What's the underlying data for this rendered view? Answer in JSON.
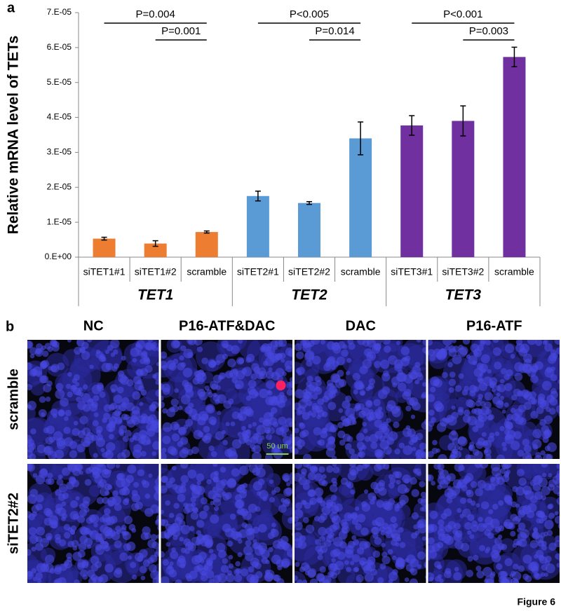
{
  "panel_a_label": "a",
  "chart_data": {
    "type": "bar",
    "y_label": "Relative mRNA level of TETs",
    "ylim": [
      0,
      7e-05
    ],
    "yticks": [
      {
        "value": 0,
        "label": "0.E+00"
      },
      {
        "value": 1e-05,
        "label": "1.E-05"
      },
      {
        "value": 2e-05,
        "label": "2.E-05"
      },
      {
        "value": 3e-05,
        "label": "3.E-05"
      },
      {
        "value": 4e-05,
        "label": "4.E-05"
      },
      {
        "value": 5e-05,
        "label": "5.E-05"
      },
      {
        "value": 6e-05,
        "label": "6.E-05"
      },
      {
        "value": 7e-05,
        "label": "7.E-05"
      }
    ],
    "groups": [
      {
        "name": "TET1",
        "color": "#ed7d31",
        "categories": [
          "siTET1#1",
          "siTET1#2",
          "scramble"
        ],
        "values": [
          5.3e-06,
          3.9e-06,
          7.2e-06
        ],
        "errors": [
          4e-07,
          8e-07,
          3e-07
        ],
        "annotations": [
          "P=0.004",
          "P=0.001"
        ]
      },
      {
        "name": "TET2",
        "color": "#5b9bd5",
        "categories": [
          "siTET2#1",
          "siTET2#2",
          "scramble"
        ],
        "values": [
          1.75e-05,
          1.55e-05,
          3.4e-05
        ],
        "errors": [
          1.4e-06,
          4e-07,
          4.7e-06
        ],
        "annotations": [
          "P<0.005",
          "P=0.014"
        ]
      },
      {
        "name": "TET3",
        "color": "#7030a0",
        "categories": [
          "siTET3#1",
          "siTET3#2",
          "scramble"
        ],
        "values": [
          3.77e-05,
          3.9e-05,
          5.73e-05
        ],
        "errors": [
          2.8e-06,
          4.3e-06,
          2.8e-06
        ],
        "annotations": [
          "P<0.001",
          "P=0.003"
        ]
      }
    ]
  },
  "panel_b": {
    "label": "b",
    "columns": [
      "NC",
      "P16-ATF&DAC",
      "DAC",
      "P16-ATF"
    ],
    "rows": [
      "scramble",
      "siTET2#2"
    ],
    "scale_bar": "50 um"
  },
  "figure_label": "Figure 6"
}
